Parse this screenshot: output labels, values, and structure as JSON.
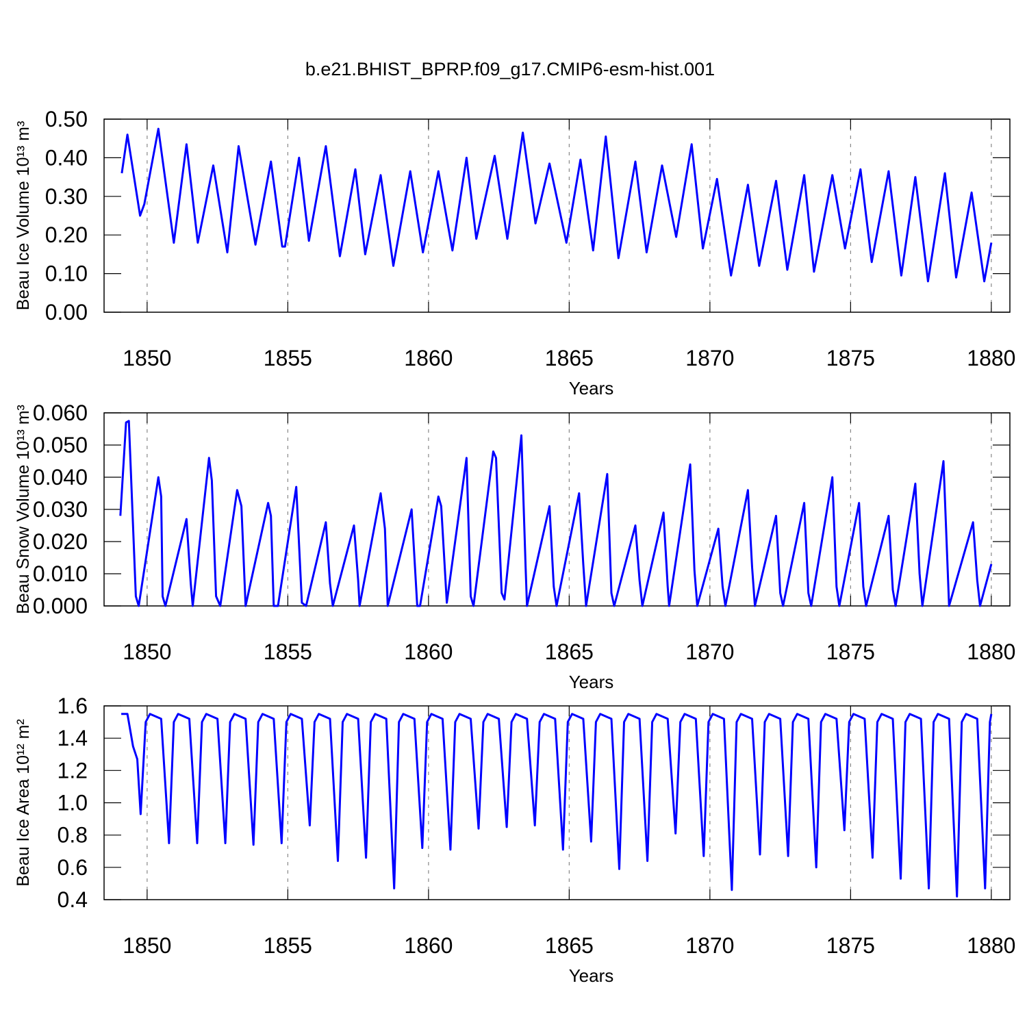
{
  "chart_data": [
    {
      "type": "line",
      "title": "b.e21.BHIST_BPRP.f09_g17.CMIP6-esm-hist.001",
      "y_label": "Beau Ice Volume 10¹³ m³",
      "x_label": "Years",
      "x": [
        1849.1,
        1849.3,
        1849.75,
        1849.9,
        1850.4,
        1850.95,
        1851.4,
        1851.8,
        1852.35,
        1852.85,
        1853.25,
        1853.85,
        1854.4,
        1854.8,
        1854.9,
        1855.4,
        1855.75,
        1856.35,
        1856.85,
        1857.4,
        1857.75,
        1858.3,
        1858.75,
        1859.35,
        1859.8,
        1860.35,
        1860.85,
        1861.35,
        1861.7,
        1862.35,
        1862.8,
        1863.35,
        1863.8,
        1864.3,
        1864.9,
        1865.4,
        1865.85,
        1866.3,
        1866.75,
        1867.35,
        1867.75,
        1868.3,
        1868.8,
        1869.35,
        1869.75,
        1870.25,
        1870.75,
        1871.35,
        1871.75,
        1872.35,
        1872.75,
        1873.35,
        1873.7,
        1874.35,
        1874.8,
        1875.35,
        1875.75,
        1876.35,
        1876.8,
        1877.3,
        1877.75,
        1878.35,
        1878.75,
        1879.3,
        1879.75,
        1880.0
      ],
      "series": [
        {
          "color": "#0000ff",
          "values": [
            0.36,
            0.46,
            0.25,
            0.28,
            0.475,
            0.18,
            0.435,
            0.18,
            0.38,
            0.155,
            0.43,
            0.175,
            0.39,
            0.17,
            0.17,
            0.4,
            0.185,
            0.43,
            0.145,
            0.37,
            0.15,
            0.355,
            0.12,
            0.365,
            0.155,
            0.365,
            0.16,
            0.4,
            0.19,
            0.405,
            0.19,
            0.465,
            0.23,
            0.385,
            0.18,
            0.395,
            0.16,
            0.455,
            0.14,
            0.39,
            0.155,
            0.38,
            0.195,
            0.435,
            0.165,
            0.345,
            0.095,
            0.33,
            0.12,
            0.34,
            0.11,
            0.355,
            0.105,
            0.355,
            0.165,
            0.37,
            0.13,
            0.365,
            0.095,
            0.35,
            0.08,
            0.36,
            0.09,
            0.31,
            0.08,
            0.18
          ]
        }
      ],
      "xlim": [
        1848.47,
        1880.66
      ],
      "ylim": [
        0,
        0.5
      ],
      "xticks": [
        1850,
        1855,
        1860,
        1865,
        1870,
        1875,
        1880
      ],
      "yticks": [
        {
          "value": 0,
          "label": "0.00"
        },
        {
          "value": 0.1,
          "label": "0.10"
        },
        {
          "value": 0.2,
          "label": "0.20"
        },
        {
          "value": 0.3,
          "label": "0.30"
        },
        {
          "value": 0.4,
          "label": "0.40"
        },
        {
          "value": 0.5,
          "label": "0.50"
        }
      ],
      "grid": true
    },
    {
      "type": "line",
      "y_label": "Beau Snow Volume 10¹³ m³",
      "x_label": "Years",
      "x": [
        1849.05,
        1849.25,
        1849.35,
        1849.6,
        1849.7,
        1850.4,
        1850.5,
        1850.55,
        1850.65,
        1851.4,
        1851.55,
        1851.62,
        1852.2,
        1852.3,
        1852.45,
        1852.6,
        1853.2,
        1853.35,
        1853.5,
        1854.3,
        1854.4,
        1854.5,
        1854.65,
        1855.3,
        1855.5,
        1855.65,
        1856.35,
        1856.5,
        1856.6,
        1857.35,
        1857.5,
        1857.55,
        1858.3,
        1858.45,
        1858.55,
        1859.4,
        1859.6,
        1859.7,
        1860.35,
        1860.45,
        1860.65,
        1861.35,
        1861.5,
        1861.6,
        1862.3,
        1862.4,
        1862.6,
        1862.7,
        1863.3,
        1863.45,
        1863.5,
        1864.3,
        1864.45,
        1864.55,
        1865.35,
        1865.5,
        1865.6,
        1866.35,
        1866.5,
        1866.6,
        1867.35,
        1867.5,
        1867.6,
        1868.35,
        1868.5,
        1868.55,
        1869.3,
        1869.45,
        1869.55,
        1870.3,
        1870.45,
        1870.55,
        1871.35,
        1871.5,
        1871.6,
        1872.35,
        1872.5,
        1872.6,
        1873.35,
        1873.5,
        1873.6,
        1874.35,
        1874.5,
        1874.6,
        1875.3,
        1875.45,
        1875.55,
        1876.35,
        1876.5,
        1876.6,
        1877.3,
        1877.45,
        1877.55,
        1878.3,
        1878.45,
        1878.5,
        1879.35,
        1879.5,
        1879.6,
        1880.0
      ],
      "series": [
        {
          "color": "#0000ff",
          "values": [
            0.028,
            0.057,
            0.0575,
            0.003,
            0,
            0.04,
            0.034,
            0.003,
            0,
            0.027,
            0.007,
            0,
            0.046,
            0.039,
            0.003,
            0,
            0.036,
            0.031,
            0,
            0.032,
            0.028,
            0,
            0,
            0.037,
            0.001,
            0,
            0.026,
            0.007,
            0,
            0.025,
            0.008,
            0,
            0.035,
            0.024,
            0,
            0.03,
            0,
            0,
            0.034,
            0.031,
            0.001,
            0.046,
            0.003,
            0,
            0.048,
            0.046,
            0.004,
            0.002,
            0.053,
            0.012,
            0,
            0.031,
            0.006,
            0,
            0.035,
            0.013,
            0,
            0.041,
            0.004,
            0,
            0.025,
            0.008,
            0,
            0.029,
            0.006,
            0,
            0.044,
            0.011,
            0,
            0.024,
            0.006,
            0,
            0.036,
            0.012,
            0,
            0.028,
            0.004,
            0,
            0.032,
            0.004,
            0,
            0.04,
            0.006,
            0,
            0.032,
            0.006,
            0,
            0.028,
            0.005,
            0,
            0.038,
            0.01,
            0,
            0.045,
            0.011,
            0,
            0.026,
            0.008,
            0,
            0.013
          ]
        }
      ],
      "xlim": [
        1848.47,
        1880.66
      ],
      "ylim": [
        0,
        0.06
      ],
      "xticks": [
        1850,
        1855,
        1860,
        1865,
        1870,
        1875,
        1880
      ],
      "yticks": [
        {
          "value": 0,
          "label": "0.000"
        },
        {
          "value": 0.01,
          "label": "0.010"
        },
        {
          "value": 0.02,
          "label": "0.020"
        },
        {
          "value": 0.03,
          "label": "0.030"
        },
        {
          "value": 0.04,
          "label": "0.040"
        },
        {
          "value": 0.05,
          "label": "0.050"
        },
        {
          "value": 0.06,
          "label": "0.060"
        }
      ],
      "grid": true
    },
    {
      "type": "line",
      "y_label": "Beau Ice Area 10¹² m²",
      "x_label": "Years",
      "x": [
        1849.08,
        1849.3,
        1849.5,
        1849.65,
        1849.77,
        1849.95,
        1850.1,
        1850.5,
        1850.78,
        1850.95,
        1851.1,
        1851.5,
        1851.78,
        1851.95,
        1852.1,
        1852.5,
        1852.78,
        1852.95,
        1853.1,
        1853.5,
        1853.78,
        1853.95,
        1854.1,
        1854.5,
        1854.78,
        1854.95,
        1855.1,
        1855.5,
        1855.78,
        1855.95,
        1856.1,
        1856.5,
        1856.78,
        1856.95,
        1857.1,
        1857.5,
        1857.78,
        1857.95,
        1858.1,
        1858.5,
        1858.78,
        1858.95,
        1859.1,
        1859.5,
        1859.78,
        1859.95,
        1860.1,
        1860.5,
        1860.78,
        1860.95,
        1861.1,
        1861.5,
        1861.78,
        1861.95,
        1862.1,
        1862.5,
        1862.78,
        1862.95,
        1863.1,
        1863.5,
        1863.78,
        1863.95,
        1864.1,
        1864.5,
        1864.78,
        1864.95,
        1865.1,
        1865.5,
        1865.78,
        1865.95,
        1866.1,
        1866.5,
        1866.78,
        1866.95,
        1867.1,
        1867.5,
        1867.78,
        1867.95,
        1868.1,
        1868.5,
        1868.78,
        1868.95,
        1869.1,
        1869.5,
        1869.78,
        1869.95,
        1870.1,
        1870.5,
        1870.78,
        1870.95,
        1871.1,
        1871.5,
        1871.78,
        1871.95,
        1872.1,
        1872.5,
        1872.78,
        1872.95,
        1873.1,
        1873.5,
        1873.78,
        1873.95,
        1874.1,
        1874.5,
        1874.78,
        1874.95,
        1875.1,
        1875.5,
        1875.78,
        1875.95,
        1876.1,
        1876.5,
        1876.78,
        1876.95,
        1877.1,
        1877.5,
        1877.78,
        1877.95,
        1878.1,
        1878.5,
        1878.78,
        1878.95,
        1879.1,
        1879.5,
        1879.78,
        1879.95,
        1880.0
      ],
      "series": [
        {
          "color": "#0000ff",
          "values": [
            1.55,
            1.55,
            1.35,
            1.27,
            0.93,
            1.5,
            1.55,
            1.52,
            0.75,
            1.5,
            1.55,
            1.52,
            0.75,
            1.5,
            1.55,
            1.52,
            0.75,
            1.5,
            1.55,
            1.52,
            0.74,
            1.5,
            1.55,
            1.52,
            0.75,
            1.5,
            1.55,
            1.52,
            0.86,
            1.5,
            1.55,
            1.52,
            0.64,
            1.5,
            1.55,
            1.52,
            0.66,
            1.5,
            1.55,
            1.52,
            0.47,
            1.5,
            1.55,
            1.52,
            0.72,
            1.5,
            1.55,
            1.52,
            0.71,
            1.5,
            1.55,
            1.52,
            0.84,
            1.5,
            1.55,
            1.52,
            0.85,
            1.5,
            1.55,
            1.52,
            0.86,
            1.5,
            1.55,
            1.52,
            0.71,
            1.5,
            1.55,
            1.52,
            0.76,
            1.5,
            1.55,
            1.52,
            0.59,
            1.5,
            1.55,
            1.52,
            0.64,
            1.5,
            1.55,
            1.52,
            0.81,
            1.5,
            1.55,
            1.52,
            0.67,
            1.5,
            1.55,
            1.52,
            0.46,
            1.5,
            1.55,
            1.52,
            0.68,
            1.5,
            1.55,
            1.52,
            0.67,
            1.5,
            1.55,
            1.52,
            0.6,
            1.5,
            1.55,
            1.52,
            0.83,
            1.5,
            1.55,
            1.52,
            0.66,
            1.5,
            1.55,
            1.52,
            0.53,
            1.5,
            1.55,
            1.52,
            0.47,
            1.5,
            1.55,
            1.52,
            0.42,
            1.5,
            1.55,
            1.52,
            0.47,
            1.5,
            1.55
          ]
        }
      ],
      "xlim": [
        1848.47,
        1880.66
      ],
      "ylim": [
        0.4,
        1.6
      ],
      "xticks": [
        1850,
        1855,
        1860,
        1865,
        1870,
        1875,
        1880
      ],
      "yticks": [
        0.4,
        0.6,
        0.8,
        {
          "value": 1,
          "label": "1.0"
        },
        1.2,
        1.4,
        1.6
      ],
      "grid": true
    }
  ]
}
